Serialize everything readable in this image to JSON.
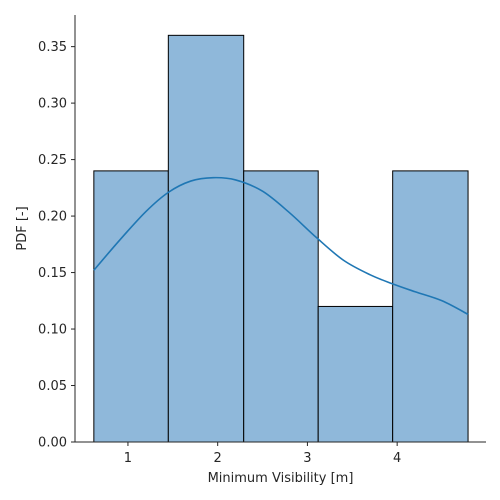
{
  "chart_data": {
    "type": "bar",
    "subtype": "histogram-with-kde",
    "title": "",
    "xlabel": "Minimum Visibility [m]",
    "ylabel": "PDF [-]",
    "xlim": [
      0.41,
      4.99
    ],
    "ylim": [
      0.0,
      0.378
    ],
    "x_ticks": [
      1,
      2,
      3,
      4
    ],
    "y_ticks": [
      0.0,
      0.05,
      0.1,
      0.15,
      0.2,
      0.25,
      0.3,
      0.35
    ],
    "y_tick_labels": [
      "0.00",
      "0.05",
      "0.10",
      "0.15",
      "0.20",
      "0.25",
      "0.30",
      "0.35"
    ],
    "bins": [
      {
        "x0": 0.62,
        "x1": 1.45,
        "value": 0.24
      },
      {
        "x0": 1.45,
        "x1": 2.29,
        "value": 0.36
      },
      {
        "x0": 2.29,
        "x1": 3.12,
        "value": 0.24
      },
      {
        "x0": 3.12,
        "x1": 3.95,
        "value": 0.12
      },
      {
        "x0": 3.95,
        "x1": 4.79,
        "value": 0.24
      }
    ],
    "kde": {
      "x": [
        0.62,
        0.9,
        1.2,
        1.45,
        1.7,
        1.95,
        2.2,
        2.5,
        2.8,
        3.1,
        3.4,
        3.7,
        3.95,
        4.2,
        4.5,
        4.79
      ],
      "y": [
        0.152,
        0.178,
        0.204,
        0.221,
        0.231,
        0.234,
        0.232,
        0.222,
        0.203,
        0.181,
        0.161,
        0.148,
        0.14,
        0.133,
        0.125,
        0.113
      ]
    },
    "grid": false,
    "legend": "none",
    "colors": {
      "bar_fill": "#8fb8da",
      "bar_edge": "#000000",
      "kde_line": "#1f77b4",
      "axis": "#262626"
    }
  }
}
